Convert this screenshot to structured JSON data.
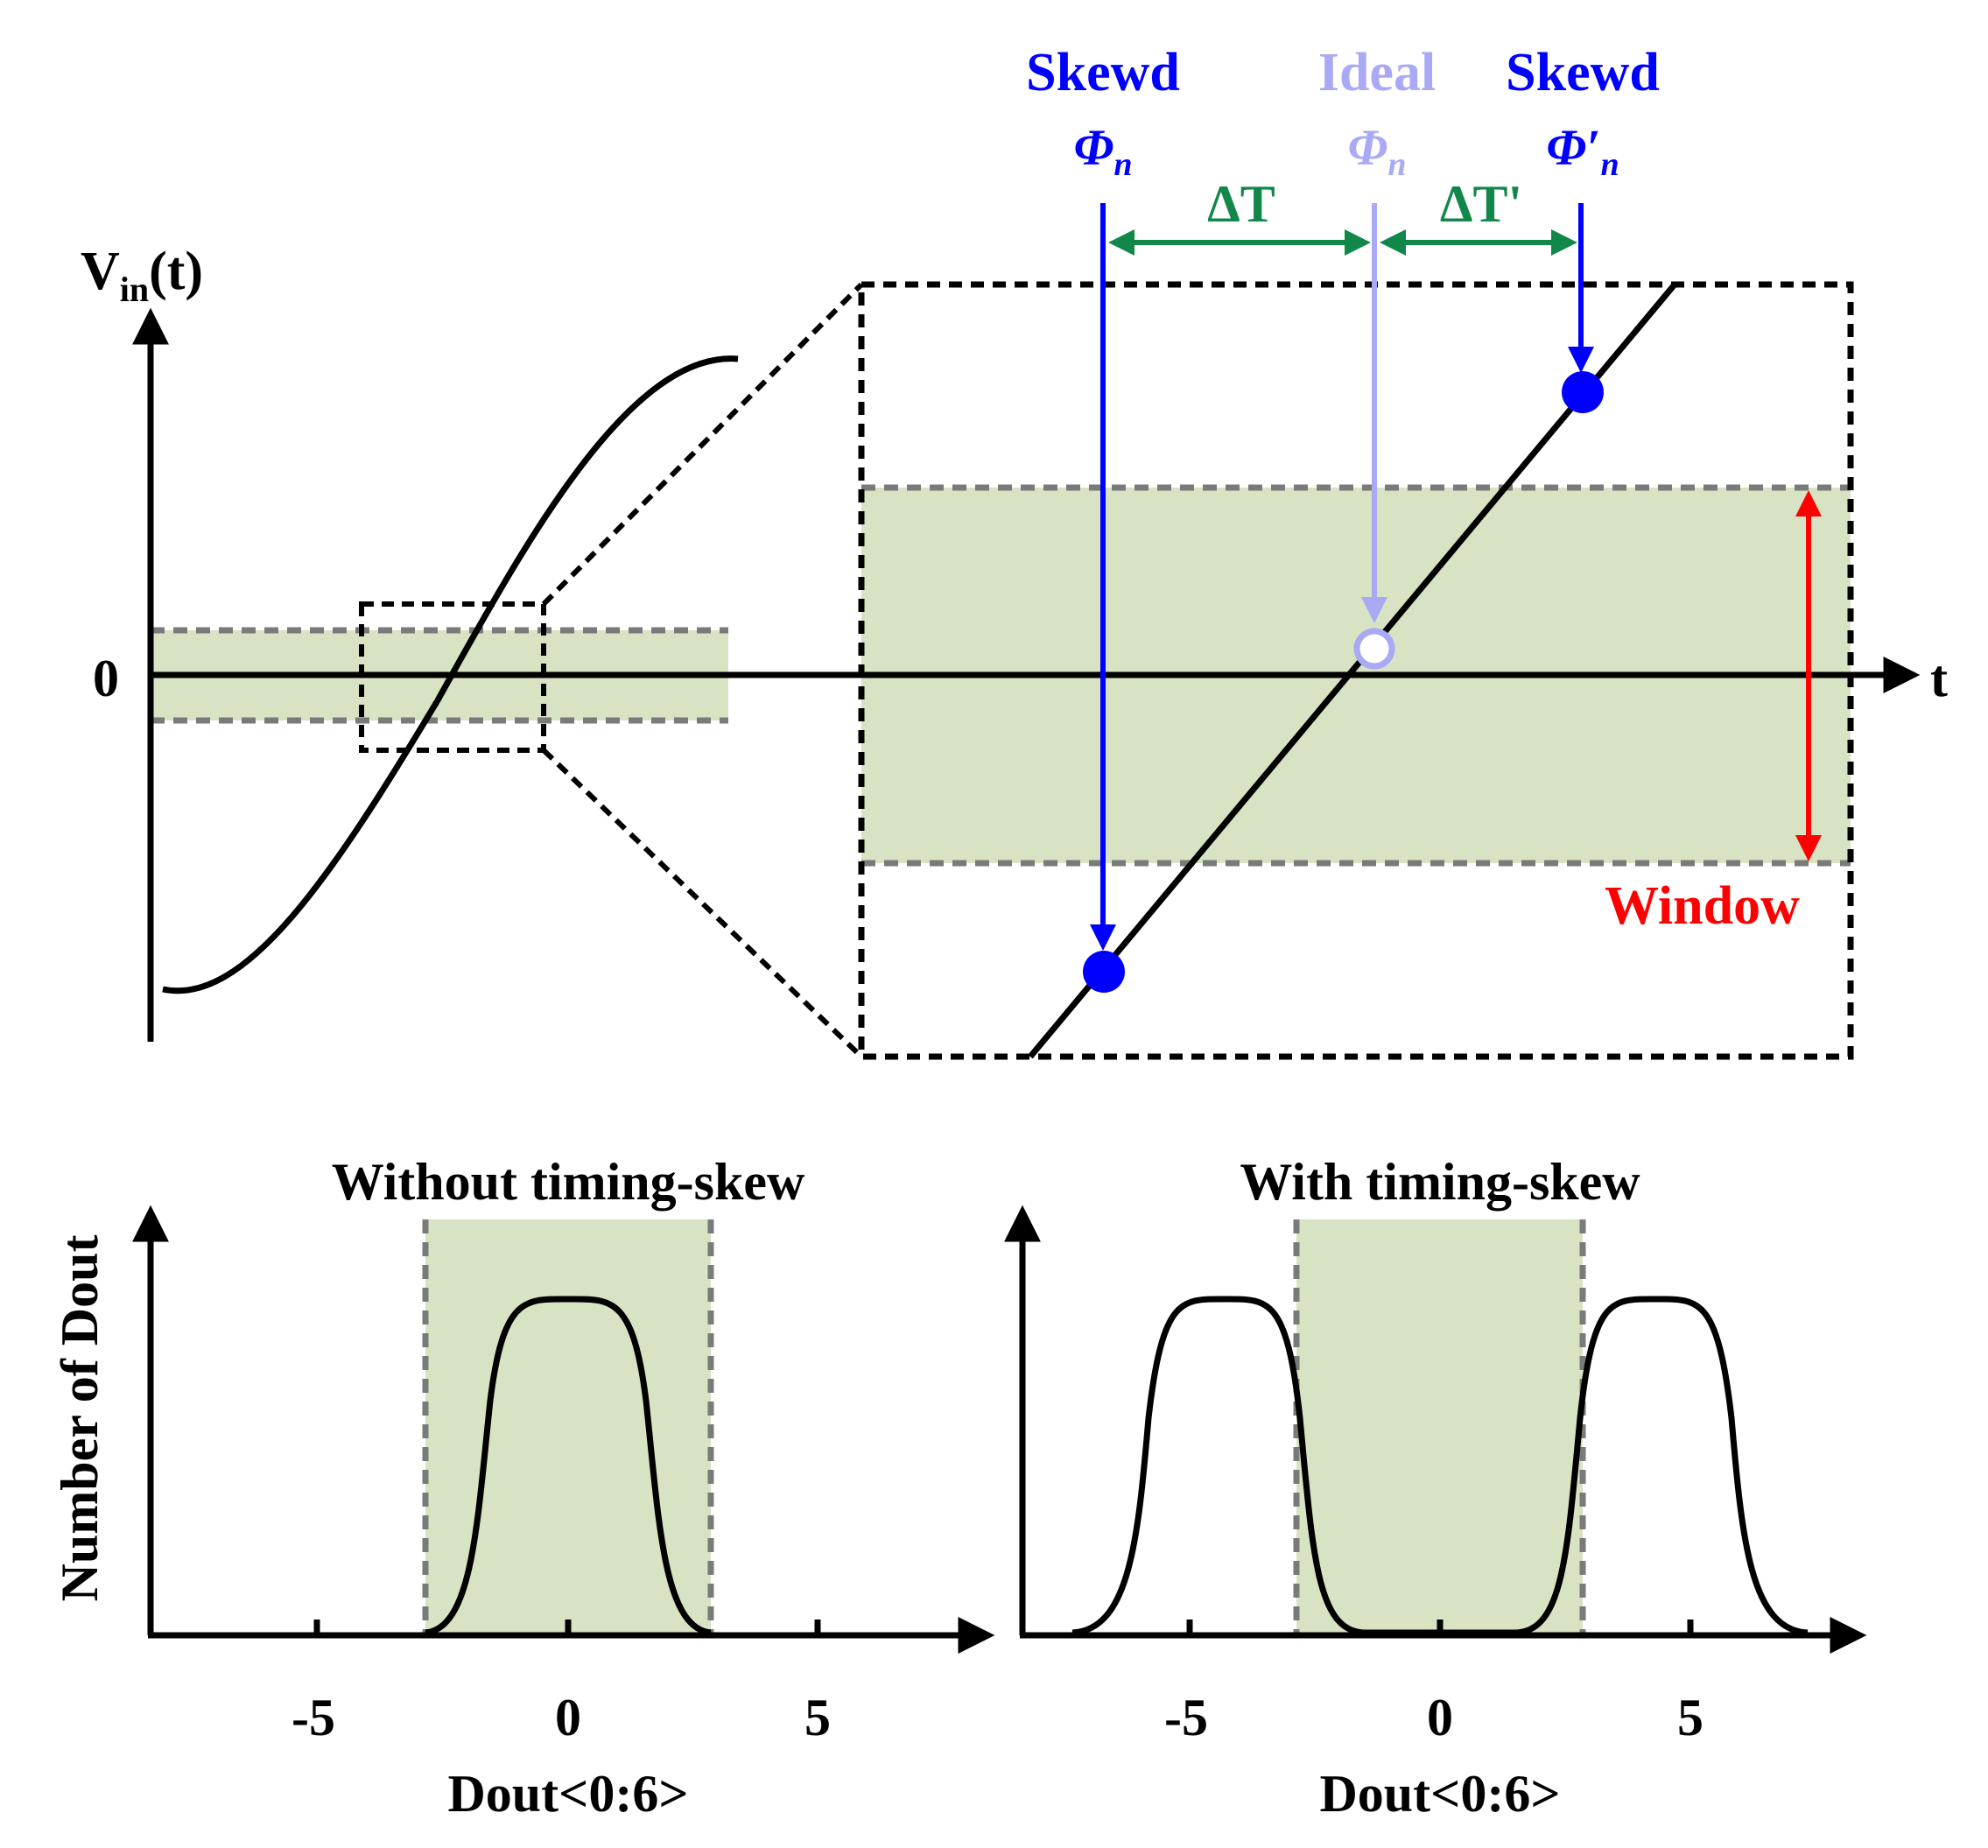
{
  "top": {
    "y_axis_label": "V",
    "y_axis_sub": "in",
    "y_axis_suffix": "(t)",
    "zero_label": "0",
    "t_label": "t",
    "window_label": "Window",
    "delta_t_label": "ΔT",
    "delta_t_prime_label": "ΔT'",
    "skewed_left": {
      "title": "Skewd",
      "phase": "Φ",
      "sub": "n"
    },
    "ideal": {
      "title": "Ideal",
      "phase": "Φ",
      "sub": "n"
    },
    "skewed_right": {
      "title": "Skewd",
      "phase": "Φ′",
      "sub": "n"
    }
  },
  "bottom_left": {
    "title": "Without timing-skew",
    "y_label": "Number of Dout",
    "x_label": "Dout<0:6>",
    "ticks": [
      "-5",
      "0",
      "5"
    ]
  },
  "bottom_right": {
    "title": "With timing-skew",
    "x_label": "Dout<0:6>",
    "ticks": [
      "-5",
      "0",
      "5"
    ]
  },
  "colors": {
    "blue": "#0000ff",
    "light_blue": "#a9a9f5",
    "green_arrow": "#11874a",
    "red": "#ff0000",
    "window_fill": "#d7e3c2",
    "dash_gray": "#7a7a7a"
  }
}
